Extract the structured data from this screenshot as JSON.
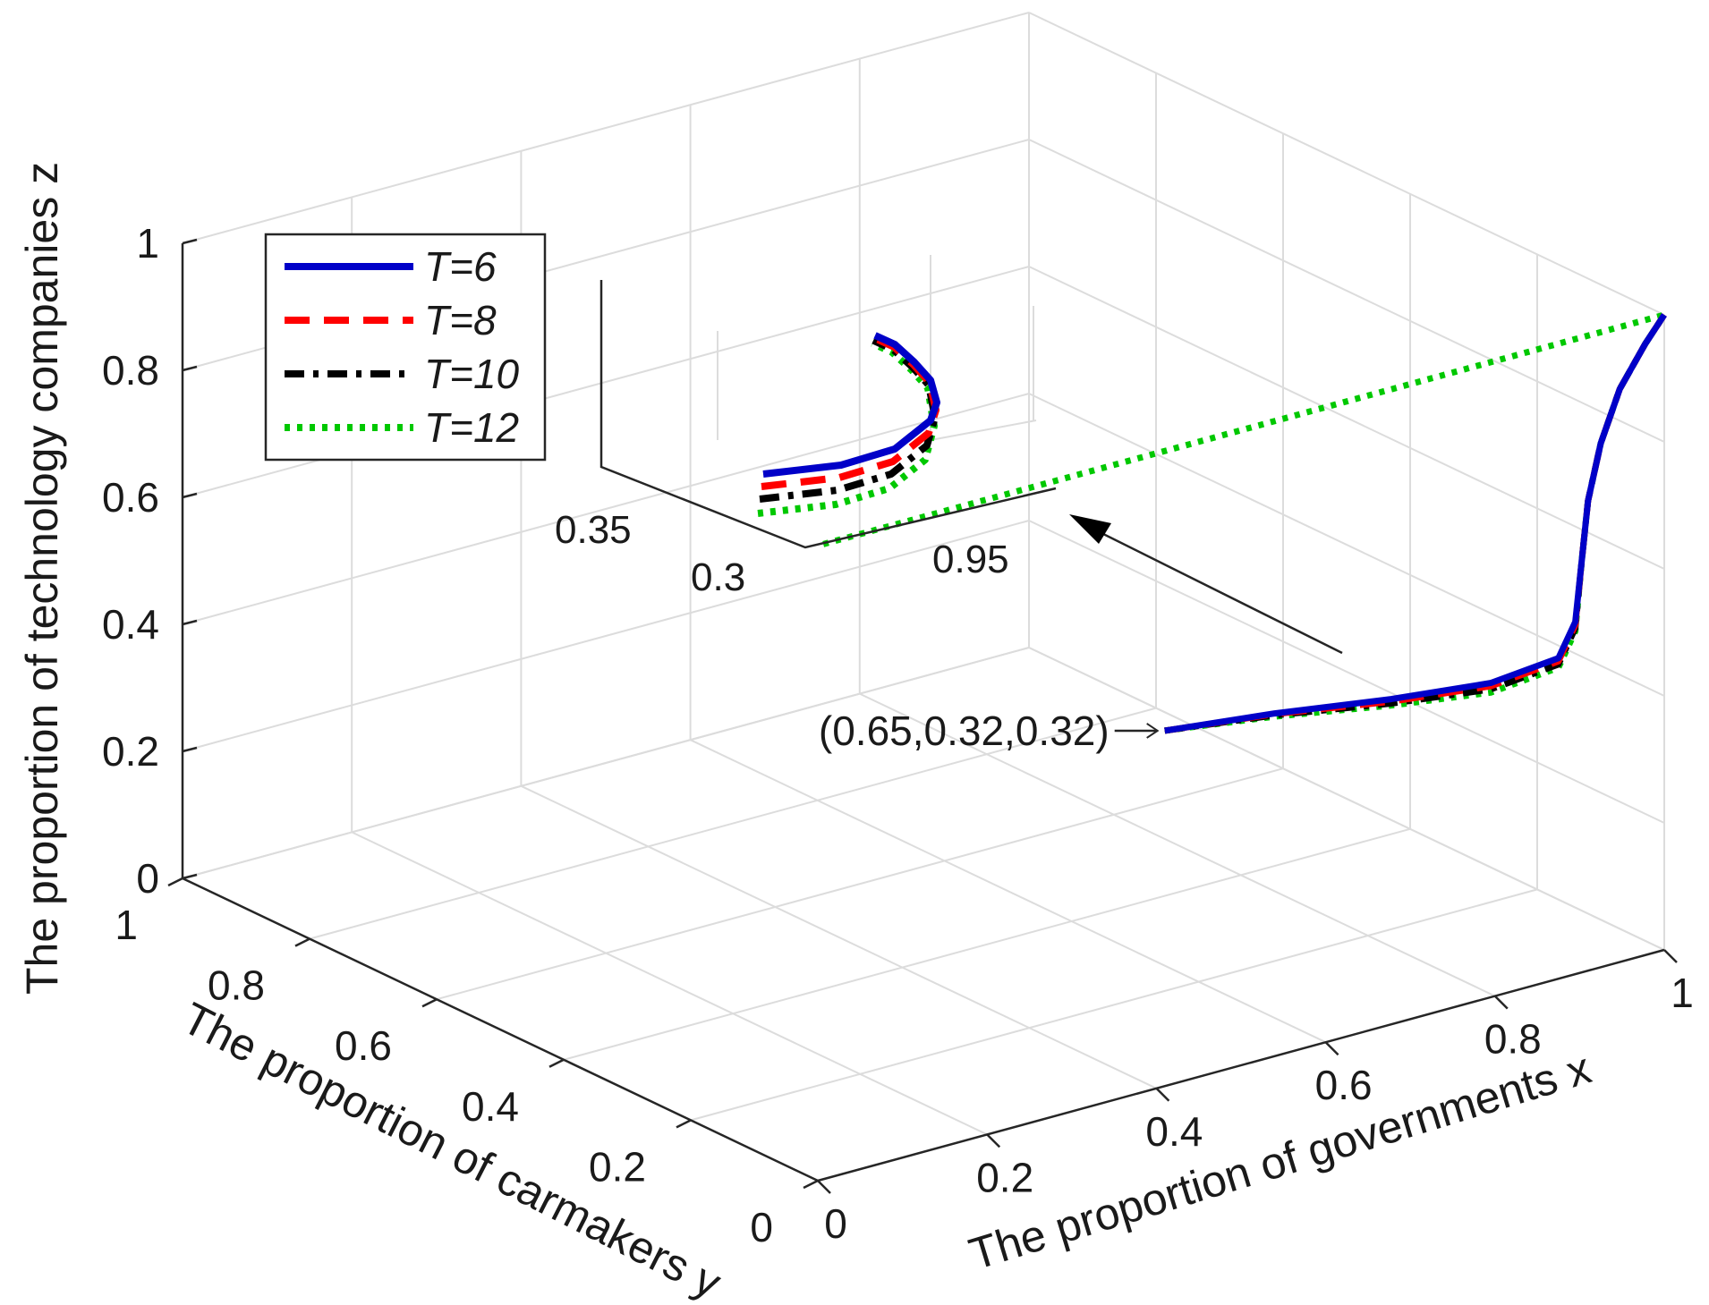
{
  "chart_data": {
    "type": "line3d",
    "xlabel": "The proportion of governments x",
    "ylabel": "The proportion of carmakers y",
    "zlabel": "The proportion of technology companies z",
    "xlim": [
      0,
      1
    ],
    "ylim": [
      0,
      1
    ],
    "zlim": [
      0,
      1
    ],
    "x_ticks": [
      "0",
      "0.2",
      "0.4",
      "0.6",
      "0.8",
      "1"
    ],
    "y_ticks": [
      "0",
      "0.2",
      "0.4",
      "0.6",
      "0.8",
      "1"
    ],
    "z_ticks": [
      "0",
      "0.2",
      "0.4",
      "0.6",
      "0.8",
      "1"
    ],
    "grid": true,
    "legend_position": "top-left",
    "series": [
      {
        "name": "T=6",
        "color": "#0000c8",
        "style": "solid",
        "points": [
          [
            0.65,
            0.32,
            0.32
          ],
          [
            0.75,
            0.28,
            0.33
          ],
          [
            0.85,
            0.23,
            0.34
          ],
          [
            0.93,
            0.18,
            0.36
          ],
          [
            0.98,
            0.14,
            0.4
          ],
          [
            1.0,
            0.14,
            0.45
          ],
          [
            1.0,
            0.13,
            0.55
          ],
          [
            1.0,
            0.12,
            0.65
          ],
          [
            1.0,
            0.1,
            0.75
          ],
          [
            1.0,
            0.07,
            0.85
          ],
          [
            1.0,
            0.03,
            0.94
          ],
          [
            1.0,
            0.0,
            1.0
          ]
        ]
      },
      {
        "name": "T=8",
        "color": "#ff0000",
        "style": "dashed",
        "points": [
          [
            0.65,
            0.32,
            0.32
          ],
          [
            0.75,
            0.28,
            0.329
          ],
          [
            0.85,
            0.23,
            0.336
          ],
          [
            0.93,
            0.18,
            0.355
          ],
          [
            0.98,
            0.14,
            0.395
          ],
          [
            1.0,
            0.14,
            0.445
          ],
          [
            1.0,
            0.13,
            0.55
          ],
          [
            1.0,
            0.12,
            0.65
          ],
          [
            1.0,
            0.1,
            0.75
          ],
          [
            1.0,
            0.07,
            0.85
          ],
          [
            1.0,
            0.03,
            0.94
          ],
          [
            1.0,
            0.0,
            1.0
          ]
        ]
      },
      {
        "name": "T=10",
        "color": "#000000",
        "style": "dashdot",
        "points": [
          [
            0.65,
            0.32,
            0.32
          ],
          [
            0.75,
            0.28,
            0.327
          ],
          [
            0.85,
            0.23,
            0.333
          ],
          [
            0.93,
            0.18,
            0.35
          ],
          [
            0.98,
            0.14,
            0.39
          ],
          [
            1.0,
            0.14,
            0.44
          ],
          [
            1.0,
            0.13,
            0.55
          ],
          [
            1.0,
            0.12,
            0.65
          ],
          [
            1.0,
            0.1,
            0.75
          ],
          [
            1.0,
            0.07,
            0.85
          ],
          [
            1.0,
            0.03,
            0.94
          ],
          [
            1.0,
            0.0,
            1.0
          ]
        ]
      },
      {
        "name": "T=12",
        "color": "#00c800",
        "style": "dotted",
        "points": [
          [
            0.65,
            0.32,
            0.32
          ],
          [
            0.75,
            0.28,
            0.325
          ],
          [
            0.85,
            0.23,
            0.33
          ],
          [
            0.93,
            0.18,
            0.345
          ],
          [
            0.98,
            0.14,
            0.385
          ],
          [
            1.0,
            0.14,
            0.435
          ],
          [
            1.0,
            0.13,
            0.55
          ],
          [
            1.0,
            0.12,
            0.65
          ],
          [
            1.0,
            0.1,
            0.75
          ],
          [
            1.0,
            0.07,
            0.85
          ],
          [
            1.0,
            0.03,
            0.94
          ],
          [
            1.0,
            0.0,
            1.0
          ],
          [
            0.0,
            0.0,
            1.0
          ]
        ]
      }
    ],
    "annotation": {
      "text": "(0.65,0.32,0.32)",
      "point": [
        0.65,
        0.32,
        0.32
      ]
    },
    "inset": {
      "description": "zoomed view near the turning point",
      "x_ticks": [
        "0.95"
      ],
      "y_ticks": [
        "0.35",
        "0.3"
      ]
    }
  }
}
